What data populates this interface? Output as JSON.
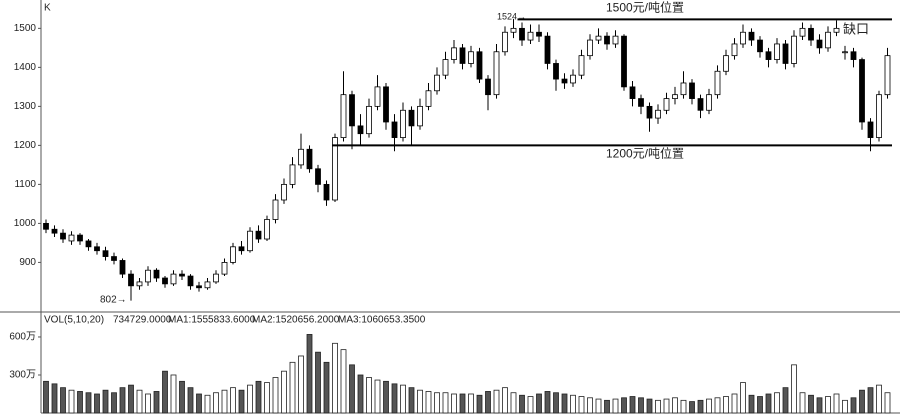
{
  "chart_data": {
    "type": "candlestick",
    "axis_label": "K",
    "ylim": [
      778,
      1565
    ],
    "yticks": [
      900,
      1000,
      1100,
      1200,
      1300,
      1400,
      1500
    ],
    "up_color": "#ffffff",
    "down_color": "#000000",
    "open": [
      1000,
      985,
      975,
      955,
      970,
      955,
      940,
      930,
      915,
      905,
      870,
      840,
      850,
      880,
      860,
      845,
      870,
      865,
      840,
      835,
      850,
      870,
      900,
      940,
      930,
      980,
      960,
      1010,
      1060,
      1100,
      1150,
      1190,
      1140,
      1100,
      1060,
      1220,
      1330,
      1250,
      1230,
      1300,
      1350,
      1260,
      1220,
      1290,
      1250,
      1300,
      1340,
      1380,
      1420,
      1450,
      1410,
      1440,
      1370,
      1330,
      1440,
      1490,
      1500,
      1470,
      1490,
      1480,
      1410,
      1370,
      1360,
      1380,
      1430,
      1470,
      1480,
      1460,
      1480,
      1350,
      1320,
      1300,
      1270,
      1290,
      1320,
      1330,
      1360,
      1320,
      1290,
      1330,
      1390,
      1430,
      1460,
      1490,
      1470,
      1440,
      1420,
      1460,
      1410,
      1480,
      1500,
      1470,
      1450,
      1490,
      1440,
      1440,
      1420,
      1260,
      1220,
      1330
    ],
    "high": [
      1010,
      995,
      985,
      980,
      975,
      960,
      950,
      940,
      925,
      910,
      880,
      860,
      890,
      885,
      865,
      880,
      880,
      870,
      850,
      860,
      880,
      910,
      950,
      955,
      990,
      995,
      1020,
      1075,
      1115,
      1170,
      1230,
      1200,
      1150,
      1110,
      1230,
      1390,
      1340,
      1280,
      1320,
      1380,
      1360,
      1280,
      1310,
      1300,
      1320,
      1360,
      1400,
      1440,
      1470,
      1460,
      1455,
      1450,
      1380,
      1460,
      1505,
      1524,
      1515,
      1510,
      1510,
      1490,
      1420,
      1385,
      1395,
      1445,
      1485,
      1500,
      1490,
      1495,
      1485,
      1365,
      1330,
      1310,
      1305,
      1335,
      1350,
      1390,
      1370,
      1330,
      1345,
      1405,
      1445,
      1475,
      1510,
      1500,
      1480,
      1450,
      1475,
      1470,
      1495,
      1515,
      1510,
      1485,
      1505,
      1520,
      1455,
      1450,
      1425,
      1270,
      1340,
      1450
    ],
    "low": [
      975,
      965,
      950,
      945,
      945,
      930,
      920,
      905,
      895,
      860,
      802,
      830,
      840,
      850,
      835,
      840,
      855,
      830,
      825,
      830,
      845,
      865,
      895,
      920,
      925,
      950,
      955,
      1000,
      1050,
      1090,
      1140,
      1130,
      1080,
      1045,
      1055,
      1210,
      1190,
      1200,
      1220,
      1290,
      1240,
      1185,
      1210,
      1200,
      1240,
      1290,
      1330,
      1370,
      1410,
      1395,
      1400,
      1360,
      1290,
      1320,
      1430,
      1475,
      1455,
      1460,
      1465,
      1395,
      1340,
      1345,
      1350,
      1370,
      1420,
      1460,
      1445,
      1450,
      1340,
      1300,
      1280,
      1235,
      1255,
      1280,
      1305,
      1320,
      1305,
      1270,
      1280,
      1320,
      1380,
      1420,
      1450,
      1455,
      1425,
      1400,
      1410,
      1395,
      1400,
      1470,
      1455,
      1435,
      1440,
      1480,
      1420,
      1400,
      1240,
      1185,
      1210,
      1320
    ],
    "close": [
      985,
      975,
      960,
      970,
      955,
      940,
      930,
      915,
      905,
      870,
      840,
      850,
      880,
      860,
      845,
      870,
      865,
      840,
      835,
      850,
      870,
      900,
      940,
      930,
      980,
      960,
      1010,
      1060,
      1100,
      1150,
      1190,
      1140,
      1100,
      1060,
      1220,
      1330,
      1250,
      1230,
      1300,
      1350,
      1260,
      1220,
      1290,
      1250,
      1300,
      1340,
      1380,
      1420,
      1450,
      1410,
      1440,
      1370,
      1330,
      1440,
      1490,
      1500,
      1470,
      1490,
      1480,
      1410,
      1370,
      1360,
      1380,
      1430,
      1470,
      1480,
      1460,
      1480,
      1350,
      1320,
      1300,
      1270,
      1290,
      1320,
      1330,
      1360,
      1320,
      1290,
      1330,
      1390,
      1430,
      1460,
      1490,
      1470,
      1440,
      1420,
      1460,
      1410,
      1480,
      1500,
      1470,
      1450,
      1490,
      1500,
      1440,
      1420,
      1260,
      1220,
      1330,
      1430
    ],
    "volume": [
      250,
      230,
      200,
      180,
      170,
      160,
      150,
      180,
      160,
      200,
      220,
      180,
      150,
      170,
      330,
      300,
      250,
      200,
      150,
      140,
      160,
      180,
      200,
      180,
      220,
      250,
      240,
      280,
      330,
      400,
      450,
      620,
      480,
      400,
      550,
      500,
      380,
      300,
      280,
      260,
      250,
      230,
      220,
      200,
      180,
      170,
      160,
      160,
      150,
      150,
      150,
      140,
      170,
      180,
      200,
      160,
      140,
      130,
      150,
      170,
      160,
      150,
      140,
      130,
      120,
      110,
      100,
      110,
      120,
      130,
      120,
      110,
      100,
      110,
      120,
      100,
      90,
      100,
      110,
      120,
      130,
      150,
      240,
      140,
      130,
      150,
      160,
      200,
      380,
      160,
      140,
      120,
      130,
      150,
      100,
      120,
      180,
      200,
      220,
      160
    ],
    "volume_header": [
      "VOL(5,10,20)",
      "734729.0000",
      "MA1:1555833.6000",
      "MA2:1520656.2000",
      "MA3:1060653.3500"
    ],
    "volume_ylim": [
      0,
      655
    ],
    "volume_yticks": [
      {
        "value": 300,
        "label": "300万"
      },
      {
        "value": 600,
        "label": "600万"
      }
    ],
    "levels": [
      {
        "value": 1523,
        "label": "1500元/吨位置"
      },
      {
        "value": 1200,
        "label": "1200元/吨位置"
      }
    ],
    "annotations": [
      "1524→",
      "802→",
      "缺口"
    ]
  }
}
